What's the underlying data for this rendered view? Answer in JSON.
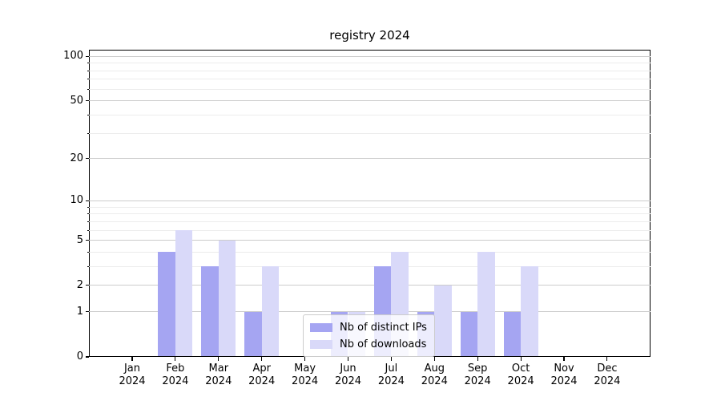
{
  "chart_data": {
    "type": "bar",
    "title": "registry 2024",
    "categories": [
      "Jan",
      "Feb",
      "Mar",
      "Apr",
      "May",
      "Jun",
      "Jul",
      "Aug",
      "Sep",
      "Oct",
      "Nov",
      "Dec"
    ],
    "category_year": "2024",
    "series": [
      {
        "name": "Nb of distinct IPs",
        "slug": "distinct-ips",
        "color": "#a5a5f2",
        "values": [
          0,
          4,
          3,
          1,
          0,
          1,
          3,
          1,
          1,
          1,
          0,
          0
        ]
      },
      {
        "name": "Nb of downloads",
        "slug": "downloads",
        "color": "#d9d9f9",
        "values": [
          0,
          6,
          5,
          3,
          0,
          1,
          4,
          2,
          4,
          3,
          0,
          0
        ]
      }
    ],
    "y_scale": "log1p",
    "ylim": [
      0,
      111
    ],
    "y_major_ticks": [
      0,
      1,
      2,
      5,
      10,
      20,
      50,
      100
    ],
    "y_minor_gridlines": [
      3,
      4,
      6,
      7,
      8,
      9,
      30,
      40,
      60,
      70,
      80,
      90
    ],
    "grid": true,
    "legend_position": "lower-center",
    "colors": {
      "major_grid": "#cccccc",
      "minor_grid": "#ececec",
      "axis": "#000000",
      "background": "#ffffff"
    }
  }
}
